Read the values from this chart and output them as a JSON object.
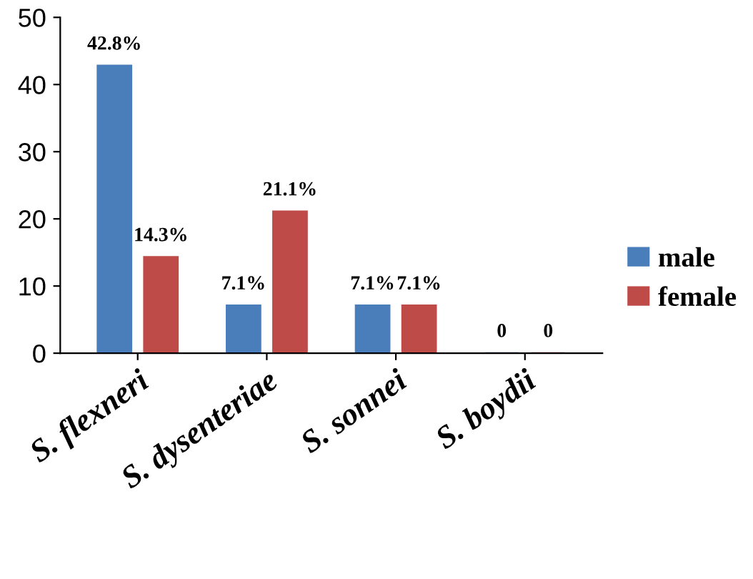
{
  "chart_data": {
    "type": "bar",
    "categories": [
      "S. flexneri",
      "S. dysenteriae",
      "S. sonnei",
      "S. boydii"
    ],
    "series": [
      {
        "name": "male",
        "color": "#4a7ebb",
        "values": [
          42.8,
          7.1,
          7.1,
          0
        ],
        "value_labels": [
          "42.8%",
          "7.1%",
          "7.1%",
          "0"
        ]
      },
      {
        "name": "female",
        "color": "#be4b48",
        "values": [
          14.3,
          21.1,
          7.1,
          0
        ],
        "value_labels": [
          "14.3%",
          "21.1%",
          "7.1%",
          "0"
        ]
      }
    ],
    "ylim": [
      0,
      50
    ],
    "yticks": [
      0,
      10,
      20,
      30,
      40,
      50
    ],
    "grid": false,
    "legend": "right"
  }
}
